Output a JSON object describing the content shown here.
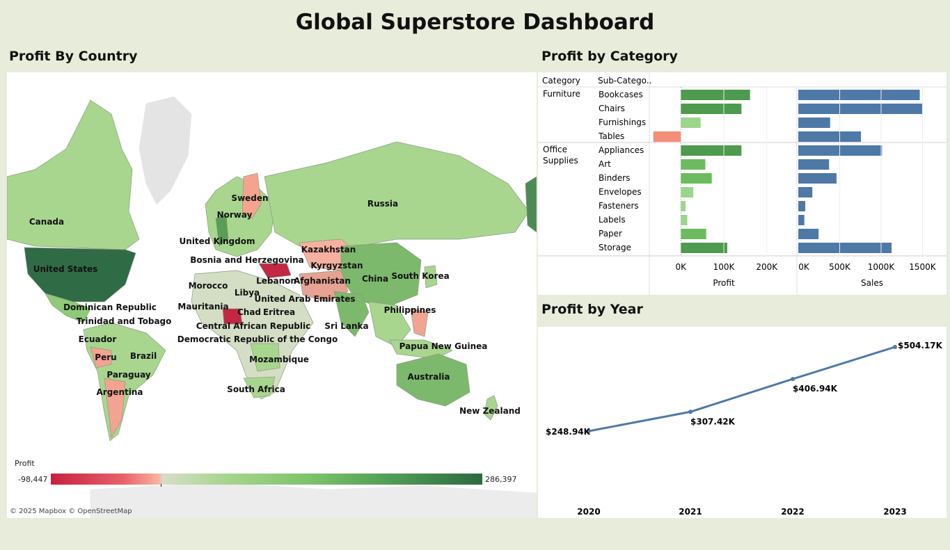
{
  "dashboard_title": "Global Superstore Dashboard",
  "map": {
    "section_title": "Profit By Country",
    "legend_title": "Profit",
    "legend_min": "-98,447",
    "legend_max": "286,397",
    "attribution": "© 2025 Mapbox © OpenStreetMap",
    "countries": [
      "Canada",
      "United States",
      "Sweden",
      "Norway",
      "Russia",
      "United Kingdom",
      "Kazakhstan",
      "Bosnia and Herzegovina",
      "Kyrgyzstan",
      "Lebanon",
      "Afghanistan",
      "Morocco",
      "China",
      "South Korea",
      "Libya",
      "United Arab Emirates",
      "Dominican Republic",
      "Mauritania",
      "Chad",
      "Eritrea",
      "Philippines",
      "Trinidad and Tobago",
      "Central African Republic",
      "Sri Lanka",
      "Ecuador",
      "Democratic Republic of the Congo",
      "Papua New Guinea",
      "Brazil",
      "Peru",
      "Mozambique",
      "Paraguay",
      "Australia",
      "Argentina",
      "South Africa",
      "New Zealand"
    ]
  },
  "category": {
    "section_title": "Profit by Category",
    "col_category": "Category",
    "col_subcategory": "Sub-Catego..",
    "profit_axis_title": "Profit",
    "sales_axis_title": "Sales",
    "profit_ticks": [
      "0K",
      "100K",
      "200K"
    ],
    "sales_ticks": [
      "0K",
      "500K",
      "1000K",
      "1500K"
    ],
    "colors": {
      "profit_dark": "#4e9a4e",
      "profit_mid": "#6cbb5e",
      "profit_light": "#9bd68a",
      "profit_neg": "#f28e7a",
      "sales": "#4e79a7"
    }
  },
  "chart_data": [
    {
      "type": "bar",
      "title": "Profit by Category",
      "groups": [
        {
          "category": "Furniture",
          "subcategories": [
            "Bookcases",
            "Chairs",
            "Furnishings",
            "Tables"
          ]
        },
        {
          "category": "Office Supplies",
          "subcategories": [
            "Appliances",
            "Art",
            "Binders",
            "Envelopes",
            "Fasteners",
            "Labels",
            "Paper",
            "Storage"
          ]
        }
      ],
      "categories": [
        "Bookcases",
        "Chairs",
        "Furnishings",
        "Tables",
        "Appliances",
        "Art",
        "Binders",
        "Envelopes",
        "Fasteners",
        "Labels",
        "Paper",
        "Storage"
      ],
      "series": [
        {
          "name": "Profit",
          "values": [
            161000,
            141000,
            46000,
            -64000,
            141000,
            57000,
            72000,
            29000,
            11000,
            15000,
            59000,
            108000
          ]
        },
        {
          "name": "Sales",
          "values": [
            1467000,
            1501000,
            385000,
            757000,
            1011000,
            372000,
            462000,
            170000,
            84000,
            73000,
            245000,
            1127000
          ]
        }
      ],
      "profit_xlim": [
        -70000,
        270000
      ],
      "sales_xlim": [
        0,
        1790000
      ],
      "xlabel": "",
      "ylabel": ""
    },
    {
      "type": "line",
      "title": "Profit by Year",
      "x": [
        "2020",
        "2021",
        "2022",
        "2023"
      ],
      "values": [
        248940,
        307420,
        406940,
        504170
      ],
      "labels": [
        "$248.94K",
        "$307.42K",
        "$406.94K",
        "$504.17K"
      ],
      "color": "#4e79a7"
    }
  ],
  "year": {
    "section_title": "Profit by Year"
  }
}
